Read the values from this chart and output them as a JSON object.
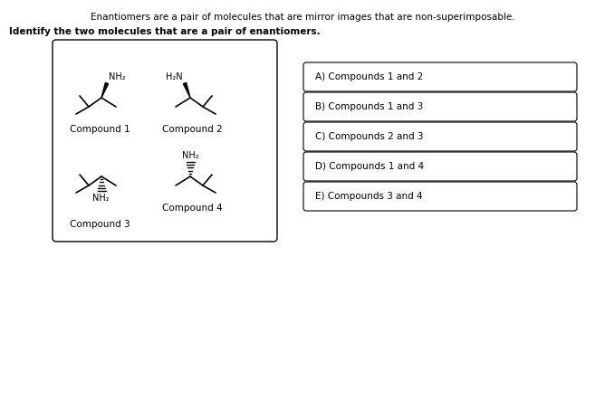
{
  "title_line1": "Enantiomers are a pair of molecules that are mirror images that are non-superimposable.",
  "title_line2": "Identify the two molecules that are a pair of enantiomers.",
  "compound_labels": [
    "Compound 1",
    "Compound 2",
    "Compound 3",
    "Compound 4"
  ],
  "nh2_label": "NH₂",
  "h2n_label": "H₂N",
  "answer_options": [
    "A) Compounds 1 and 2",
    "B) Compounds 1 and 3",
    "C) Compounds 2 and 3",
    "D) Compounds 1 and 4",
    "E) Compounds 3 and 4"
  ],
  "background": "#ffffff",
  "box_color": "#000000",
  "text_color": "#000000",
  "figsize": [
    6.68,
    4.41
  ],
  "dpi": 100
}
